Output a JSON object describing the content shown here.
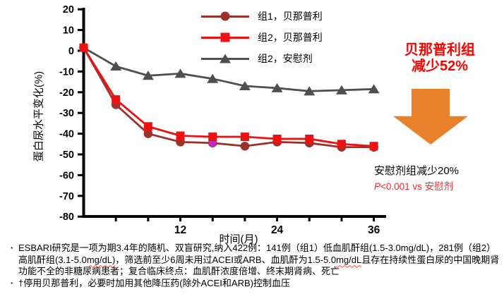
{
  "chart_data": {
    "type": "line",
    "x": [
      0,
      4,
      8,
      12,
      16,
      20,
      24,
      28,
      32,
      36
    ],
    "series": [
      {
        "name": "组1，贝那普利",
        "marker": "circle",
        "color": "#9C322B",
        "values": [
          1.5,
          -26,
          -40,
          -44,
          -44.5,
          -46,
          -44,
          -44.5,
          -46.5,
          -46.5
        ]
      },
      {
        "name": "组2，贝那普利",
        "marker": "square",
        "color": "#EE1111",
        "values": [
          1.5,
          -23.5,
          -36.5,
          -41,
          -41.5,
          -41.5,
          -42.5,
          -42.5,
          -45,
          -46
        ]
      },
      {
        "name": "组2，安慰剂",
        "marker": "triangle",
        "color": "#4F4F4F",
        "values": [
          1.5,
          -7.5,
          -12,
          -11,
          -13.5,
          -17,
          -18,
          -19.5,
          -19,
          -18.5
        ]
      }
    ],
    "extra_point": {
      "x": 16,
      "y": -44.5,
      "color": "#BF2CBF"
    },
    "ylabel": "蛋白尿水平变化(%)",
    "xlabel": "时间(月)",
    "ylim": [
      -80,
      20
    ],
    "xlim": [
      0,
      37
    ],
    "yticks": [
      20,
      10,
      0,
      -10,
      -20,
      -30,
      -40,
      -50,
      -60,
      -70,
      -80
    ],
    "xticks": [
      4,
      8,
      12,
      16,
      20,
      24,
      28,
      32,
      36
    ],
    "xtick_labels": [
      12,
      24,
      36
    ],
    "grid": false,
    "legend_position": "top-center"
  },
  "annotation": {
    "headline_line1": "贝那普利组",
    "headline_line2": "减少52%",
    "headline_color": "#FF0000",
    "arrow_icon": "block-down-arrow",
    "arrow_color": "#E8812B",
    "placebo_note": "安慰剂组减少20%",
    "p_italic": "P",
    "p_rest": "<0.001 vs 安慰剂",
    "p_color": "#F42A2A"
  },
  "notes": {
    "bullet_char": "·",
    "bullet1_segments": [
      {
        "t": "ESBARI研究是一项为期3.4年的随机、双盲研究,纳入422例：141例（组1）低血肌酐组(1.5-3.0mg/dL)，281例（组2）高肌酐组(3.1-5.0",
        "wavy": false
      },
      {
        "t": "mg/dL)",
        "wavy": true
      },
      {
        "t": "，筛选前至少6周未用过ACEI或ARB、血肌酐为1.5-5.0",
        "wavy": false
      },
      {
        "t": "mg/dL",
        "wavy": true
      },
      {
        "t": "且存在持续性蛋白尿的中国晚期肾功能不全的非糖尿病患者；复合临床终点：血肌酐浓度倍增、终末期肾病、死亡",
        "wavy": false
      }
    ],
    "bullet2": "†停用贝那普利，必要时加用其他降压药(除外ACEI和ARB)控制血压"
  }
}
